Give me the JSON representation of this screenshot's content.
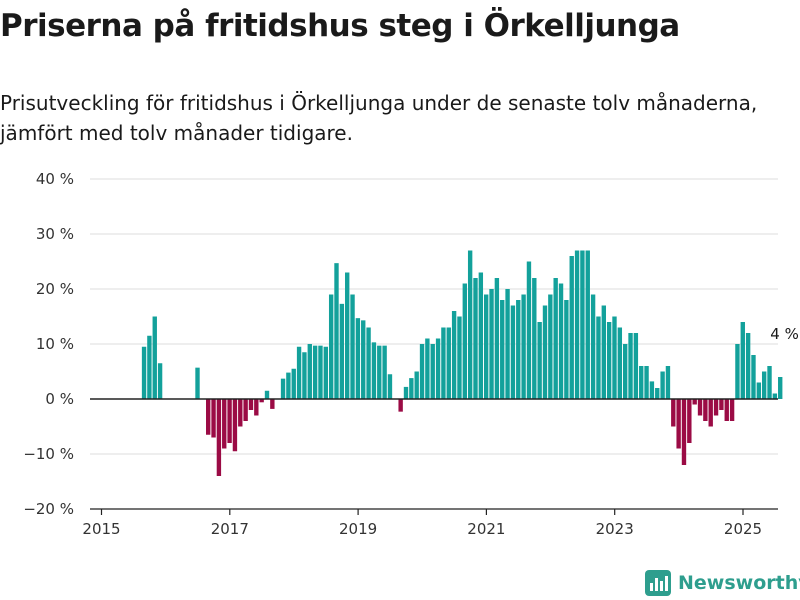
{
  "title": "Priserna på fritidshus steg i Örkelljunga",
  "subtitle": "Prisutveckling för fritidshus i Örkelljunga under de senaste tolv månaderna, jämfört med tolv månader tidigare.",
  "brand": {
    "name": "Newsworthy",
    "icon": "newsworthy-logo-icon",
    "color": "#2e9e8e"
  },
  "colors": {
    "positive": "#13a19b",
    "negative": "#9b0b45",
    "grid": "#dddddd",
    "zero_line": "#222222"
  },
  "chart_data": {
    "type": "bar",
    "x_axis": {
      "type": "date",
      "range": [
        "2015-01",
        "2025-12"
      ],
      "ticks": [
        "2015",
        "2017",
        "2019",
        "2021",
        "2023",
        "2025"
      ]
    },
    "y_axis": {
      "range": [
        -20,
        40
      ],
      "ticks": [
        -20,
        -10,
        0,
        10,
        20,
        30,
        40
      ],
      "tick_labels": [
        "−20 %",
        "−10 %",
        "0 %",
        "10 %",
        "20 %",
        "30 %",
        "40 %"
      ]
    },
    "grid": true,
    "annotation": {
      "text": "4 %",
      "x": "2025-02",
      "y": 4
    },
    "points": [
      {
        "x": "2015-05",
        "y": 9.5
      },
      {
        "x": "2015-06",
        "y": 11.5
      },
      {
        "x": "2015-07",
        "y": 15
      },
      {
        "x": "2015-08",
        "y": 6.5
      },
      {
        "x": "2016-03",
        "y": 5.7
      },
      {
        "x": "2016-05",
        "y": -6.5
      },
      {
        "x": "2016-06",
        "y": -7
      },
      {
        "x": "2016-07",
        "y": -14
      },
      {
        "x": "2016-08",
        "y": -9
      },
      {
        "x": "2016-09",
        "y": -8
      },
      {
        "x": "2016-10",
        "y": -9.5
      },
      {
        "x": "2016-11",
        "y": -5
      },
      {
        "x": "2016-12",
        "y": -4
      },
      {
        "x": "2017-01",
        "y": -2
      },
      {
        "x": "2017-02",
        "y": -3
      },
      {
        "x": "2017-03",
        "y": -0.6
      },
      {
        "x": "2017-04",
        "y": 1.5
      },
      {
        "x": "2017-05",
        "y": -1.8
      },
      {
        "x": "2017-07",
        "y": 3.7
      },
      {
        "x": "2017-08",
        "y": 4.8
      },
      {
        "x": "2017-09",
        "y": 5.5
      },
      {
        "x": "2017-10",
        "y": 9.5
      },
      {
        "x": "2017-11",
        "y": 8.5
      },
      {
        "x": "2017-12",
        "y": 10
      },
      {
        "x": "2018-01",
        "y": 9.7
      },
      {
        "x": "2018-02",
        "y": 9.7
      },
      {
        "x": "2018-03",
        "y": 9.5
      },
      {
        "x": "2018-04",
        "y": 19
      },
      {
        "x": "2018-05",
        "y": 24.7
      },
      {
        "x": "2018-06",
        "y": 17.3
      },
      {
        "x": "2018-07",
        "y": 23
      },
      {
        "x": "2018-08",
        "y": 19
      },
      {
        "x": "2018-09",
        "y": 14.7
      },
      {
        "x": "2018-10",
        "y": 14.3
      },
      {
        "x": "2018-11",
        "y": 13
      },
      {
        "x": "2018-12",
        "y": 10.3
      },
      {
        "x": "2019-01",
        "y": 9.7
      },
      {
        "x": "2019-02",
        "y": 9.7
      },
      {
        "x": "2019-03",
        "y": 4.5
      },
      {
        "x": "2019-05",
        "y": -2.3
      },
      {
        "x": "2019-06",
        "y": 2.2
      },
      {
        "x": "2019-07",
        "y": 3.8
      },
      {
        "x": "2019-08",
        "y": 5
      },
      {
        "x": "2019-09",
        "y": 10
      },
      {
        "x": "2019-10",
        "y": 11
      },
      {
        "x": "2019-11",
        "y": 10
      },
      {
        "x": "2019-12",
        "y": 11
      },
      {
        "x": "2020-01",
        "y": 13
      },
      {
        "x": "2020-02",
        "y": 13
      },
      {
        "x": "2020-03",
        "y": 16
      },
      {
        "x": "2020-04",
        "y": 15
      },
      {
        "x": "2020-05",
        "y": 21
      },
      {
        "x": "2020-06",
        "y": 27
      },
      {
        "x": "2020-07",
        "y": 22
      },
      {
        "x": "2020-08",
        "y": 23
      },
      {
        "x": "2020-09",
        "y": 19
      },
      {
        "x": "2020-10",
        "y": 20
      },
      {
        "x": "2020-11",
        "y": 22
      },
      {
        "x": "2020-12",
        "y": 18
      },
      {
        "x": "2021-01",
        "y": 20
      },
      {
        "x": "2021-02",
        "y": 17
      },
      {
        "x": "2021-03",
        "y": 18
      },
      {
        "x": "2021-04",
        "y": 19
      },
      {
        "x": "2021-05",
        "y": 25
      },
      {
        "x": "2021-06",
        "y": 22
      },
      {
        "x": "2021-07",
        "y": 14
      },
      {
        "x": "2021-08",
        "y": 17
      },
      {
        "x": "2021-09",
        "y": 19
      },
      {
        "x": "2021-10",
        "y": 22
      },
      {
        "x": "2021-11",
        "y": 21
      },
      {
        "x": "2021-12",
        "y": 18
      },
      {
        "x": "2022-01",
        "y": 26
      },
      {
        "x": "2022-02",
        "y": 27
      },
      {
        "x": "2022-03",
        "y": 27
      },
      {
        "x": "2022-04",
        "y": 27
      },
      {
        "x": "2022-05",
        "y": 19
      },
      {
        "x": "2022-06",
        "y": 15
      },
      {
        "x": "2022-07",
        "y": 17
      },
      {
        "x": "2022-08",
        "y": 14
      },
      {
        "x": "2022-09",
        "y": 15
      },
      {
        "x": "2022-10",
        "y": 13
      },
      {
        "x": "2022-11",
        "y": 10
      },
      {
        "x": "2022-12",
        "y": 12
      },
      {
        "x": "2023-01",
        "y": 12
      },
      {
        "x": "2023-02",
        "y": 6
      },
      {
        "x": "2023-03",
        "y": 6
      },
      {
        "x": "2023-04",
        "y": 3.2
      },
      {
        "x": "2023-05",
        "y": 2
      },
      {
        "x": "2023-06",
        "y": 5
      },
      {
        "x": "2023-07",
        "y": 6
      },
      {
        "x": "2023-08",
        "y": -5
      },
      {
        "x": "2023-09",
        "y": -9
      },
      {
        "x": "2023-10",
        "y": -12
      },
      {
        "x": "2023-11",
        "y": -8
      },
      {
        "x": "2023-12",
        "y": -1
      },
      {
        "x": "2024-01",
        "y": -3
      },
      {
        "x": "2024-02",
        "y": -4
      },
      {
        "x": "2024-03",
        "y": -5
      },
      {
        "x": "2024-04",
        "y": -3
      },
      {
        "x": "2024-05",
        "y": -2
      },
      {
        "x": "2024-06",
        "y": -4
      },
      {
        "x": "2024-07",
        "y": -4
      },
      {
        "x": "2024-08",
        "y": 10
      },
      {
        "x": "2024-09",
        "y": 14
      },
      {
        "x": "2024-10",
        "y": 12
      },
      {
        "x": "2024-11",
        "y": 8
      },
      {
        "x": "2024-12",
        "y": 3
      },
      {
        "x": "2025-01",
        "y": 5
      },
      {
        "x": "2025-02",
        "y": 6
      },
      {
        "x": "2025-03",
        "y": 1
      },
      {
        "x": "2025-04",
        "y": 4
      }
    ]
  }
}
